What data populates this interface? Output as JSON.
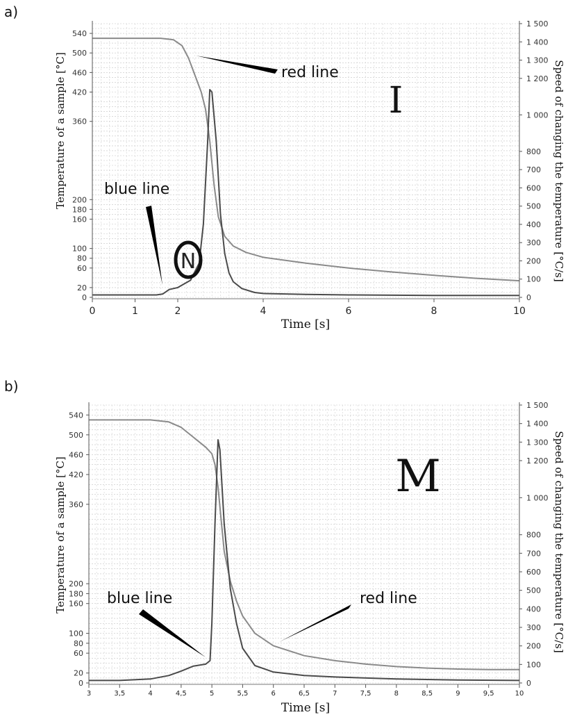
{
  "chart_data": [
    {
      "panel_label": "a)",
      "type": "line",
      "big_letter": "I",
      "xlabel": "Time [s]",
      "ylabel_left": "Temperature of a sample [°C]",
      "ylabel_right": "Speed of changing the temperature [°C/s]",
      "xlim": [
        0,
        10
      ],
      "ylim_left": [
        0,
        560
      ],
      "ylim_right": [
        0,
        1500
      ],
      "x_ticks": [
        "0",
        "1",
        "2",
        "4",
        "6",
        "8",
        "10"
      ],
      "x_tick_values": [
        0,
        1,
        2,
        4,
        6,
        8,
        10
      ],
      "y_left_ticks": [
        "0",
        "20",
        "60",
        "80",
        "100",
        "160",
        "180",
        "200",
        "360",
        "420",
        "460",
        "500",
        "540"
      ],
      "y_left_tick_values": [
        0,
        20,
        60,
        80,
        100,
        160,
        180,
        200,
        360,
        420,
        460,
        500,
        540
      ],
      "y_right_ticks": [
        "0",
        "100",
        "200",
        "300",
        "400",
        "500",
        "600",
        "700",
        "800",
        "1 000",
        "1 200",
        "1 300",
        "1 400",
        "1 500"
      ],
      "y_right_tick_values": [
        0,
        100,
        200,
        300,
        400,
        500,
        600,
        700,
        800,
        1000,
        1200,
        1300,
        1400,
        1500
      ],
      "grid": true,
      "circled_mark": "N",
      "annotations": [
        {
          "text": "red line",
          "target": "temperature"
        },
        {
          "text": "blue line",
          "target": "speed"
        }
      ],
      "series": [
        {
          "axis": "left",
          "color": "#8a8a8a",
          "points": [
            [
              0,
              530
            ],
            [
              1.0,
              530
            ],
            [
              1.6,
              530
            ],
            [
              1.9,
              527
            ],
            [
              2.1,
              515
            ],
            [
              2.25,
              490
            ],
            [
              2.4,
              455
            ],
            [
              2.55,
              420
            ],
            [
              2.65,
              385
            ],
            [
              2.75,
              320
            ],
            [
              2.85,
              230
            ],
            [
              2.95,
              165
            ],
            [
              3.1,
              125
            ],
            [
              3.3,
              105
            ],
            [
              3.6,
              92
            ],
            [
              4.0,
              82
            ],
            [
              5.0,
              70
            ],
            [
              6.0,
              60
            ],
            [
              7.0,
              52
            ],
            [
              8.0,
              45
            ],
            [
              9.0,
              39
            ],
            [
              10.0,
              34
            ]
          ]
        },
        {
          "axis": "left",
          "color": "#4a4a4a",
          "points": [
            [
              0,
              5
            ],
            [
              1.0,
              5
            ],
            [
              1.5,
              5
            ],
            [
              1.65,
              7
            ],
            [
              1.8,
              16
            ],
            [
              2.0,
              20
            ],
            [
              2.1,
              25
            ],
            [
              2.3,
              35
            ],
            [
              2.5,
              70
            ],
            [
              2.6,
              150
            ],
            [
              2.7,
              320
            ],
            [
              2.75,
              425
            ],
            [
              2.8,
              420
            ],
            [
              2.9,
              320
            ],
            [
              3.0,
              170
            ],
            [
              3.1,
              90
            ],
            [
              3.2,
              50
            ],
            [
              3.3,
              32
            ],
            [
              3.5,
              18
            ],
            [
              3.8,
              10
            ],
            [
              4.0,
              8
            ],
            [
              5.0,
              6
            ],
            [
              6.0,
              5
            ],
            [
              8.0,
              4
            ],
            [
              10.0,
              4
            ]
          ]
        }
      ]
    },
    {
      "panel_label": "b)",
      "type": "line",
      "big_letter": "M",
      "xlabel": "Time [s]",
      "ylabel_left": "Temperature of a sample [°C]",
      "ylabel_right": "Speed of changing the temperature [°C/s]",
      "xlim": [
        3,
        10
      ],
      "ylim_left": [
        0,
        560
      ],
      "ylim_right": [
        0,
        1500
      ],
      "x_ticks": [
        "3",
        "3,5",
        "4",
        "4,5",
        "5",
        "5,5",
        "6",
        "6,5",
        "7",
        "7,5",
        "8",
        "8,5",
        "9",
        "9,5",
        "10"
      ],
      "x_tick_values": [
        3,
        3.5,
        4,
        4.5,
        5,
        5.5,
        6,
        6.5,
        7,
        7.5,
        8,
        8.5,
        9,
        9.5,
        10
      ],
      "y_left_ticks": [
        "0",
        "20",
        "60",
        "80",
        "100",
        "160",
        "180",
        "200",
        "360",
        "420",
        "460",
        "500",
        "540"
      ],
      "y_left_tick_values": [
        0,
        20,
        60,
        80,
        100,
        160,
        180,
        200,
        360,
        420,
        460,
        500,
        540
      ],
      "y_right_ticks": [
        "0",
        "100",
        "200",
        "300",
        "400",
        "500",
        "600",
        "700",
        "800",
        "1 000",
        "1 200",
        "1 300",
        "1 400",
        "1 500"
      ],
      "y_right_tick_values": [
        0,
        100,
        200,
        300,
        400,
        500,
        600,
        700,
        800,
        1000,
        1200,
        1300,
        1400,
        1500
      ],
      "grid": true,
      "annotations": [
        {
          "text": "blue line",
          "target": "speed"
        },
        {
          "text": "red line",
          "target": "temperature"
        }
      ],
      "series": [
        {
          "axis": "left",
          "color": "#8a8a8a",
          "points": [
            [
              3,
              530
            ],
            [
              3.5,
              530
            ],
            [
              4.0,
              530
            ],
            [
              4.3,
              526
            ],
            [
              4.5,
              515
            ],
            [
              4.7,
              495
            ],
            [
              4.9,
              475
            ],
            [
              5.0,
              462
            ],
            [
              5.05,
              440
            ],
            [
              5.1,
              395
            ],
            [
              5.15,
              330
            ],
            [
              5.2,
              265
            ],
            [
              5.3,
              205
            ],
            [
              5.4,
              165
            ],
            [
              5.5,
              135
            ],
            [
              5.7,
              100
            ],
            [
              6.0,
              75
            ],
            [
              6.5,
              55
            ],
            [
              7.0,
              45
            ],
            [
              7.5,
              38
            ],
            [
              8.0,
              33
            ],
            [
              8.5,
              30
            ],
            [
              9.0,
              28
            ],
            [
              9.5,
              27
            ],
            [
              10.0,
              27
            ]
          ]
        },
        {
          "axis": "left",
          "color": "#4a4a4a",
          "points": [
            [
              3,
              5
            ],
            [
              3.5,
              5
            ],
            [
              4.0,
              8
            ],
            [
              4.3,
              15
            ],
            [
              4.5,
              24
            ],
            [
              4.7,
              34
            ],
            [
              4.9,
              38
            ],
            [
              4.97,
              45
            ],
            [
              5.0,
              120
            ],
            [
              5.05,
              320
            ],
            [
              5.1,
              490
            ],
            [
              5.13,
              470
            ],
            [
              5.2,
              320
            ],
            [
              5.3,
              190
            ],
            [
              5.4,
              120
            ],
            [
              5.5,
              70
            ],
            [
              5.7,
              35
            ],
            [
              6.0,
              22
            ],
            [
              6.5,
              15
            ],
            [
              7.0,
              12
            ],
            [
              8.0,
              8
            ],
            [
              9.0,
              6
            ],
            [
              10.0,
              5
            ]
          ]
        }
      ]
    }
  ]
}
